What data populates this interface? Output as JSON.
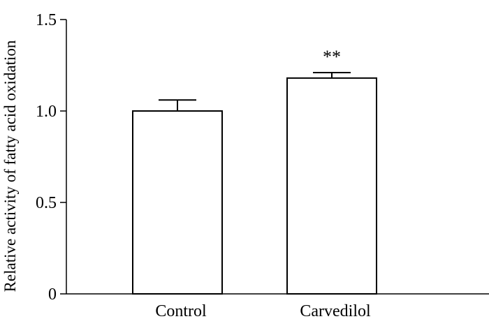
{
  "chart_data": {
    "type": "bar",
    "categories": [
      "Control",
      "Carvedilol"
    ],
    "values": [
      1.0,
      1.18
    ],
    "errors": [
      0.06,
      0.03
    ],
    "annotations": [
      "",
      "**"
    ],
    "ylabel": "Relative activity of fatty acid oxidation",
    "xlabel": "",
    "ylim": [
      0,
      1.5
    ],
    "yticks": [
      0,
      0.5,
      1.0,
      1.5
    ],
    "ytick_labels": [
      "0",
      "0.5",
      "1.0",
      "1.5"
    ],
    "grid": false,
    "bar_color": "#ffffff",
    "edge_color": "#000000"
  }
}
